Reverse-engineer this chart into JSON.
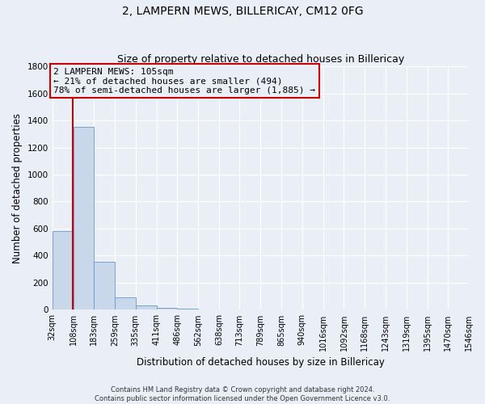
{
  "title": "2, LAMPERN MEWS, BILLERICAY, CM12 0FG",
  "subtitle": "Size of property relative to detached houses in Billericay",
  "xlabel": "Distribution of detached houses by size in Billericay",
  "ylabel": "Number of detached properties",
  "bin_edges": [
    32,
    108,
    183,
    259,
    335,
    411,
    486,
    562,
    638,
    713,
    789,
    865,
    940,
    1016,
    1092,
    1168,
    1243,
    1319,
    1395,
    1470,
    1546
  ],
  "bin_heights": [
    580,
    1350,
    355,
    90,
    30,
    15,
    8,
    5,
    3,
    2,
    2,
    2,
    1,
    1,
    1,
    1,
    1,
    1,
    1,
    1
  ],
  "bar_color": "#c8d8ea",
  "bar_edge_color": "#6699cc",
  "property_line_x": 105,
  "property_line_color": "#cc0000",
  "annotation_line1": "2 LAMPERN MEWS: 105sqm",
  "annotation_line2": "← 21% of detached houses are smaller (494)",
  "annotation_line3": "78% of semi-detached houses are larger (1,885) →",
  "annotation_box_color": "#cc0000",
  "ylim": [
    0,
    1800
  ],
  "yticks": [
    0,
    200,
    400,
    600,
    800,
    1000,
    1200,
    1400,
    1600,
    1800
  ],
  "footer_line1": "Contains HM Land Registry data © Crown copyright and database right 2024.",
  "footer_line2": "Contains public sector information licensed under the Open Government Licence v3.0.",
  "bg_color": "#eaeff7",
  "grid_color": "#ffffff",
  "title_fontsize": 10,
  "subtitle_fontsize": 9,
  "axis_label_fontsize": 8.5,
  "tick_fontsize": 7.5,
  "annotation_fontsize": 8
}
